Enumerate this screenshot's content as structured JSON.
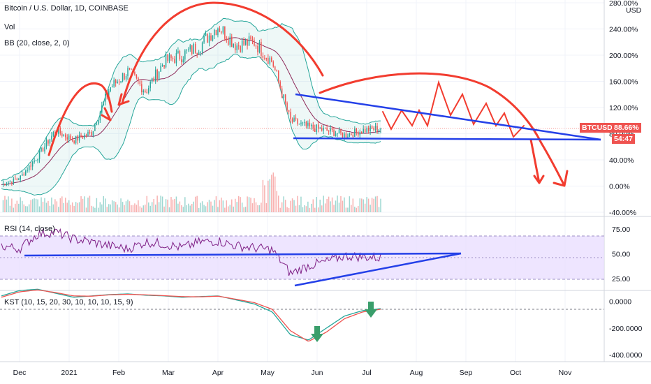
{
  "header": {
    "symbol_title": "Bitcoin / U.S. Dollar, 1D, COINBASE",
    "volume_label": "Vol",
    "bb_label": "BB (20, close, 2, 0)",
    "currency": "USD"
  },
  "price_tag": {
    "symbol": "BTCUSD",
    "value": "88.66%",
    "countdown": "54:47"
  },
  "colors": {
    "up": "#26a69a",
    "down": "#ef5350",
    "drawing_red": "#f23c2f",
    "drawing_blue": "#2440e8",
    "rsi_band": "#e2d6ff",
    "rsi_line": "#7e1f86",
    "kst_line": "#26a69a",
    "kst_signal": "#ef5350",
    "arrow_green": "#3a9e6b"
  },
  "icons": {
    "signal_arrows": "arrow-down-icon"
  },
  "chart_data": [
    {
      "type": "line",
      "name": "price",
      "ylabel": "",
      "yscale": "percent",
      "ylim": [
        -40,
        280
      ],
      "y_ticks": [
        "280.00%",
        "240.00%",
        "200.00%",
        "160.00%",
        "120.00%",
        "80.00%",
        "40.00%",
        "0.00%",
        "-40.00%"
      ],
      "x_ticks": [
        "Dec",
        "2021",
        "Feb",
        "Mar",
        "Apr",
        "May",
        "Jun",
        "Jul",
        "Aug",
        "Sep",
        "Oct",
        "Nov"
      ],
      "x": [
        "Dec 1",
        "Dec 15",
        "Jan 1",
        "Jan 10",
        "Jan 20",
        "Feb 1",
        "Feb 10",
        "Feb 20",
        "Mar 1",
        "Mar 13",
        "Mar 25",
        "Apr 1",
        "Apr 14",
        "Apr 25",
        "May 1",
        "May 10",
        "May 20",
        "Jun 1",
        "Jun 10",
        "Jun 20",
        "Jul 1",
        "Jul 7"
      ],
      "series": [
        {
          "values": [
            2,
            12,
            45,
            85,
            70,
            82,
            150,
            175,
            145,
            190,
            200,
            215,
            245,
            215,
            220,
            190,
            100,
            90,
            85,
            78,
            85,
            88.66
          ]
        }
      ],
      "volume_label": "Vol",
      "bollinger_bands": "BB (20, close, 2, 0)"
    },
    {
      "type": "line",
      "name": "RSI",
      "title": "RSI (14, close)",
      "ylim": [
        20,
        85
      ],
      "y_ticks": [
        "75.00",
        "50.00",
        "25.00"
      ],
      "band": [
        30,
        70
      ],
      "series": [
        {
          "values": [
            58,
            55,
            70,
            72,
            65,
            62,
            58,
            55,
            62,
            60,
            56,
            62,
            63,
            58,
            56,
            54,
            30,
            38,
            42,
            48,
            47,
            46
          ]
        }
      ]
    },
    {
      "type": "line",
      "name": "KST",
      "title": "KST (10, 15, 20, 30, 10, 10, 10, 15, 9)",
      "ylim": [
        -420,
        60
      ],
      "y_ticks": [
        "0.0000",
        "-200.0000",
        "-400.0000"
      ],
      "series": [
        {
          "values": [
            40,
            80,
            90,
            60,
            30,
            40,
            50,
            55,
            45,
            40,
            30,
            35,
            40,
            10,
            -20,
            -80,
            -250,
            -290,
            -200,
            -110,
            -70,
            -55
          ]
        },
        {
          "values": [
            30,
            70,
            85,
            65,
            40,
            38,
            48,
            52,
            48,
            42,
            35,
            33,
            38,
            15,
            -10,
            -60,
            -220,
            -300,
            -230,
            -130,
            -80,
            -60
          ]
        }
      ]
    }
  ]
}
